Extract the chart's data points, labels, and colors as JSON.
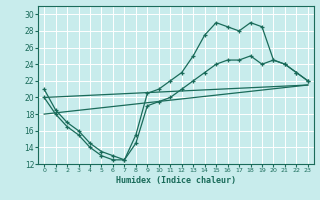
{
  "xlabel": "Humidex (Indice chaleur)",
  "bg_color": "#c8ecec",
  "grid_color": "#ffffff",
  "line_color": "#1a6b5a",
  "x_ticks": [
    0,
    1,
    2,
    3,
    4,
    5,
    6,
    7,
    8,
    9,
    10,
    11,
    12,
    13,
    14,
    15,
    16,
    17,
    18,
    19,
    20,
    21,
    22,
    23
  ],
  "ylim": [
    12,
    31
  ],
  "y_ticks": [
    12,
    14,
    16,
    18,
    20,
    22,
    24,
    26,
    28,
    30
  ],
  "xlim": [
    -0.5,
    23.5
  ],
  "line1_x": [
    0,
    1,
    2,
    3,
    4,
    5,
    6,
    7,
    8,
    9,
    10,
    11,
    12,
    13,
    14,
    15,
    16,
    17,
    18,
    19,
    20,
    21,
    22,
    23
  ],
  "line1_y": [
    21,
    18.5,
    17,
    16,
    14.5,
    13.5,
    13,
    12.5,
    15.5,
    20.5,
    21,
    22,
    23,
    25,
    27.5,
    29,
    28.5,
    28,
    29,
    28.5,
    24.5,
    24,
    23,
    22
  ],
  "line2_x": [
    0,
    1,
    2,
    3,
    4,
    5,
    6,
    7,
    8,
    9,
    10,
    11,
    12,
    13,
    14,
    15,
    16,
    17,
    18,
    19,
    20,
    21,
    22,
    23
  ],
  "line2_y": [
    20,
    18,
    16.5,
    15.5,
    14,
    13,
    12.5,
    12.5,
    14.5,
    19,
    19.5,
    20,
    21,
    22,
    23,
    24,
    24.5,
    24.5,
    25,
    24,
    24.5,
    24,
    23,
    22
  ],
  "line3_x": [
    0,
    23
  ],
  "line3_y": [
    18.0,
    21.5
  ],
  "line4_x": [
    0,
    23
  ],
  "line4_y": [
    20.0,
    21.5
  ]
}
